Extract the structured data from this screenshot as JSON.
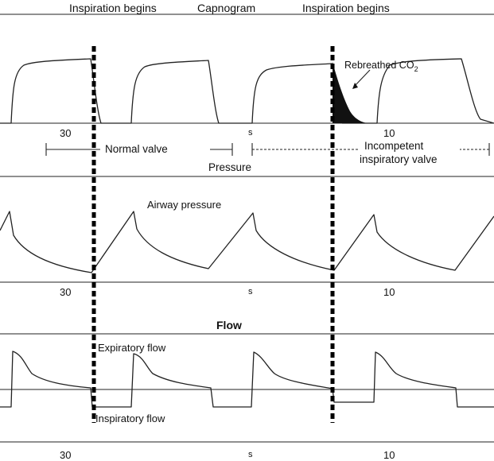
{
  "header": {
    "inspiration_left": "Inspiration begins",
    "center": "Capnogram",
    "inspiration_right": "Inspiration begins"
  },
  "capnogram": {
    "rebreathed_label": "Rebreathed CO",
    "rebreathed_sub": "2",
    "axis_ticks": {
      "left": "30",
      "middle": "s",
      "right": "10"
    }
  },
  "valve_ranges": {
    "normal": "Normal valve",
    "incompetent_line1": "Incompetent",
    "incompetent_line2": "inspiratory valve"
  },
  "pressure": {
    "section_title": "Pressure",
    "trace_label": "Airway pressure",
    "axis_ticks": {
      "left": "30",
      "middle": "s",
      "right": "10"
    }
  },
  "flow": {
    "section_title": "Flow",
    "expiratory_label": "Expiratory flow",
    "inspiratory_label": "Inspiratory flow",
    "axis_ticks": {
      "left": "30",
      "middle": "s",
      "right": "10"
    }
  }
}
